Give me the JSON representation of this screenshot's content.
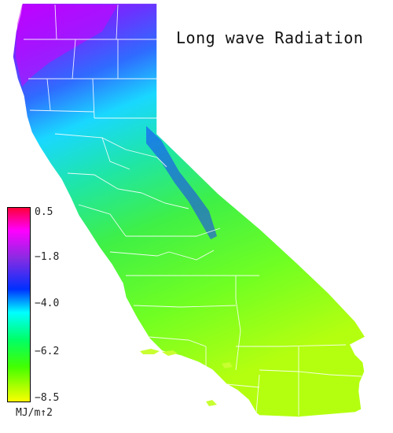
{
  "title": "Long wave Radiation",
  "legend": {
    "ticks": [
      "0.5",
      "−1.8",
      "−4.0",
      "−6.2",
      "−8.5"
    ],
    "units": "MJ/m↑2",
    "colors": [
      "#ff0033",
      "#ff00ff",
      "#8a2be2",
      "#0030ff",
      "#00ffff",
      "#00ff66",
      "#44ff00",
      "#ccff00",
      "#ffff00"
    ]
  },
  "map": {
    "region": "California",
    "shading": "county-level long wave radiation",
    "colors": {
      "north_coast": "#a020f0",
      "north_inland": "#3c78ff",
      "mid": "#00e6c8",
      "central": "#33f050",
      "south": "#80ff00"
    }
  }
}
